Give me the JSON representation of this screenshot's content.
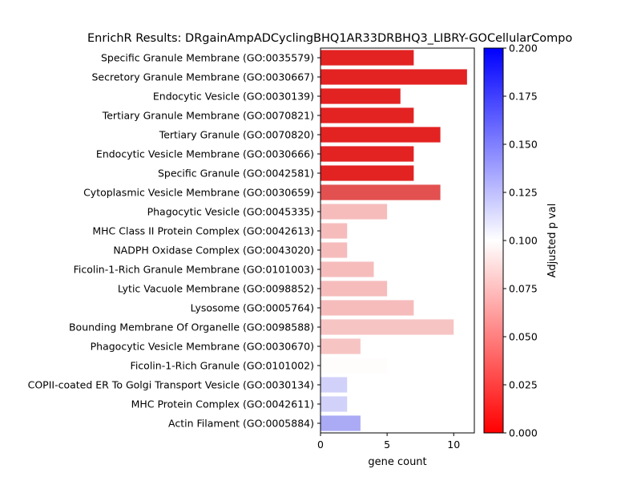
{
  "chart_data": {
    "type": "bar",
    "orientation": "horizontal",
    "title": "EnrichR Results: DRgainAmpADCyclingBHQ1AR33DRBHQ3_LIBRY-GOCellularCompo",
    "xlabel": "gene count",
    "xlim": [
      0,
      11.55
    ],
    "xticks": [
      0,
      5,
      10
    ],
    "categories": [
      "Specific Granule Membrane (GO:0035579)",
      "Secretory Granule Membrane (GO:0030667)",
      "Endocytic Vesicle (GO:0030139)",
      "Tertiary Granule Membrane (GO:0070821)",
      "Tertiary Granule (GO:0070820)",
      "Endocytic Vesicle Membrane (GO:0030666)",
      "Specific Granule (GO:0042581)",
      "Cytoplasmic Vesicle Membrane (GO:0030659)",
      "Phagocytic Vesicle (GO:0045335)",
      "MHC Class II Protein Complex (GO:0042613)",
      "NADPH Oxidase Complex (GO:0043020)",
      "Ficolin-1-Rich Granule Membrane (GO:0101003)",
      "Lytic Vacuole Membrane (GO:0098852)",
      "Lysosome (GO:0005764)",
      "Bounding Membrane Of Organelle (GO:0098588)",
      "Phagocytic Vesicle Membrane (GO:0030670)",
      "Ficolin-1-Rich Granule (GO:0101002)",
      "COPII-coated ER To Golgi Transport Vesicle (GO:0030134)",
      "MHC Protein Complex (GO:0042611)",
      "Actin Filament (GO:0005884)"
    ],
    "values": [
      7,
      11,
      6,
      7,
      9,
      7,
      7,
      9,
      5,
      2,
      2,
      4,
      5,
      7,
      10,
      3,
      5,
      2,
      2,
      3
    ],
    "adjusted_p": [
      0.0045,
      0.0045,
      0.0045,
      0.0045,
      0.0045,
      0.0045,
      0.0045,
      0.0145,
      0.065,
      0.065,
      0.065,
      0.065,
      0.065,
      0.065,
      0.07,
      0.07,
      0.099,
      0.118,
      0.118,
      0.146
    ],
    "colorbar": {
      "label": "Adjusted p val",
      "range": [
        0,
        0.2
      ],
      "ticks": [
        "0.000",
        "0.025",
        "0.050",
        "0.075",
        "0.100",
        "0.125",
        "0.150",
        "0.175",
        "0.200"
      ],
      "colormap": "bwr_r",
      "low_color": "#ff0000",
      "mid_color": "#ffffff",
      "high_color": "#0000ff"
    },
    "bar_colors": [
      "#e32222",
      "#e32222",
      "#e32222",
      "#e32222",
      "#e32222",
      "#e32222",
      "#e32222",
      "#e35050",
      "#f6bcbc",
      "#f6bcbc",
      "#f6bcbc",
      "#f6bcbc",
      "#f6bcbc",
      "#f6bcbc",
      "#f7c4c4",
      "#f7c4c4",
      "#fffdfc",
      "#d1d1f9",
      "#d1d1f9",
      "#aaaaf5"
    ],
    "grid": false,
    "legend": "none"
  }
}
